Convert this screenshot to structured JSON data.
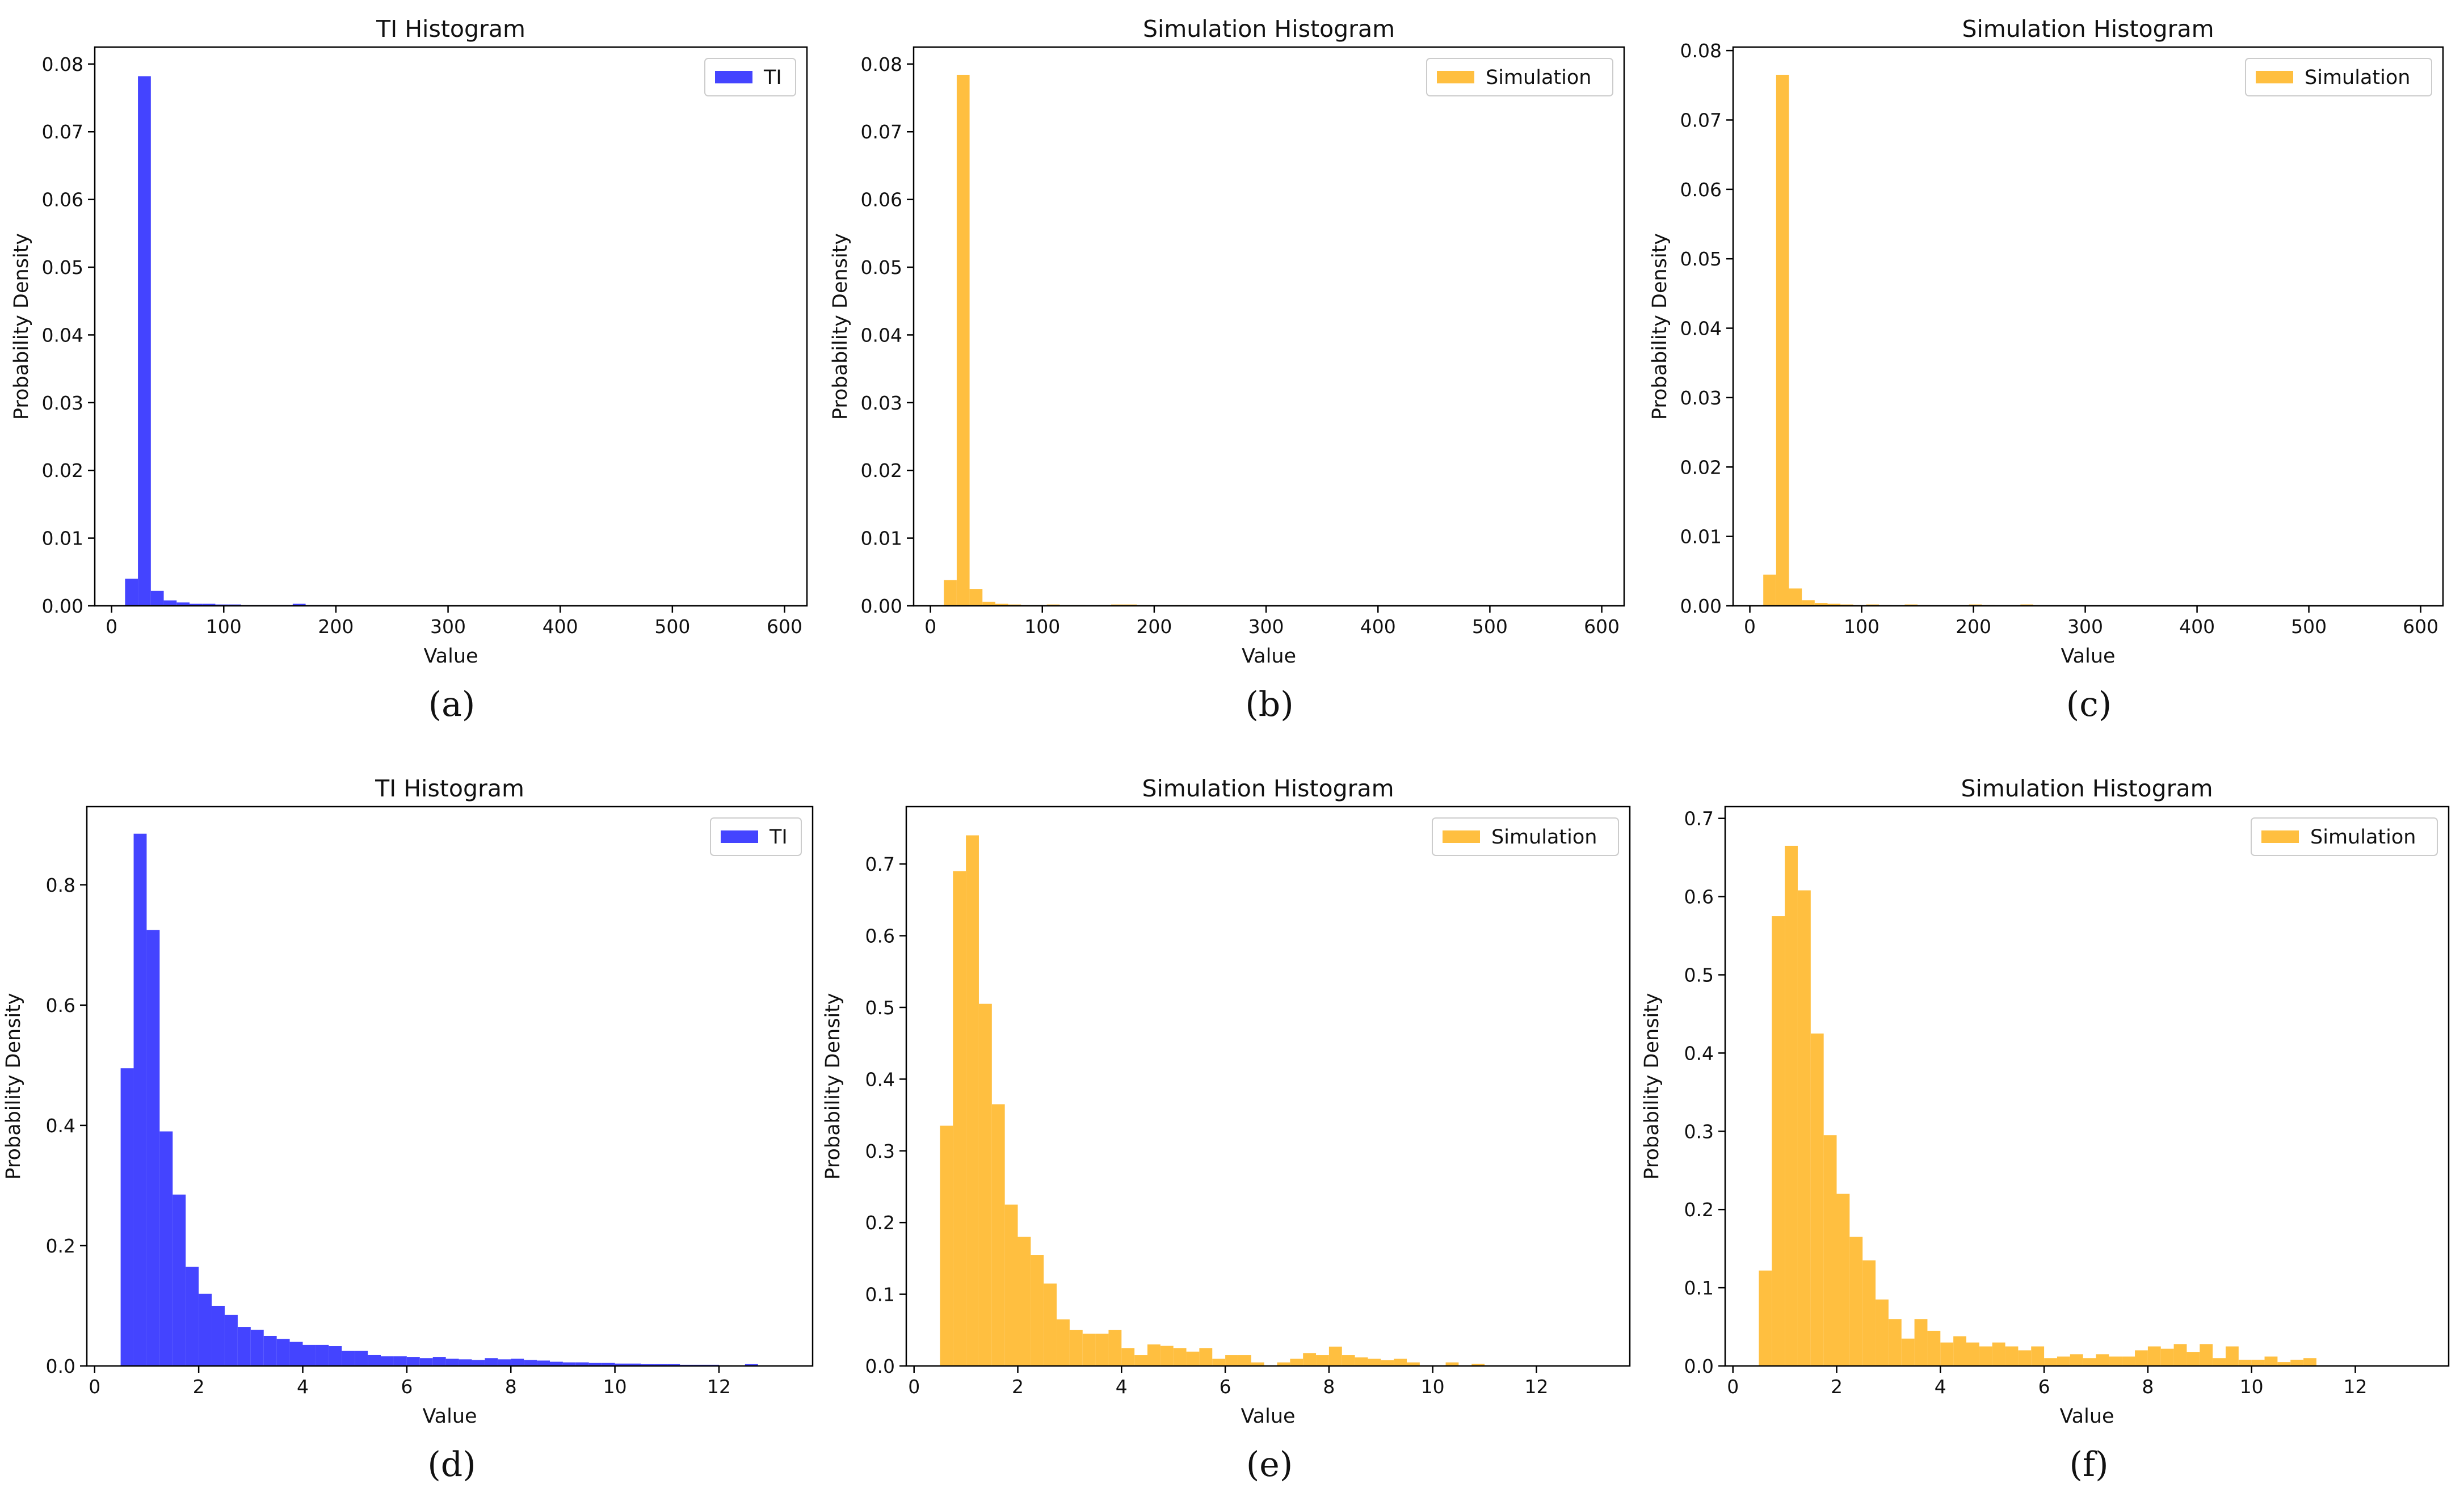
{
  "chart_data": [
    {
      "type": "bar",
      "panel": "(a)",
      "title": "TI Histogram",
      "xlabel": "Value",
      "ylabel": "Probability Density",
      "xlim": [
        -15,
        620
      ],
      "ylim": [
        0,
        0.0825
      ],
      "xticks": [
        0,
        100,
        200,
        300,
        400,
        500,
        600
      ],
      "yticks": [
        0.0,
        0.01,
        0.02,
        0.03,
        0.04,
        0.05,
        0.06,
        0.07,
        0.08
      ],
      "ytick_labels": [
        "0.00",
        "0.01",
        "0.02",
        "0.03",
        "0.04",
        "0.05",
        "0.06",
        "0.07",
        "0.08"
      ],
      "bin_start": 12,
      "bin_width": 11.5,
      "values": [
        0.004,
        0.0782,
        0.0022,
        0.0008,
        0.0005,
        0.0003,
        0.0003,
        0.0002,
        0.0002,
        0.0001,
        0.0001,
        0.0001,
        0.0001,
        0.0003,
        0.0001,
        0.0001
      ],
      "legend": [
        "TI"
      ],
      "legend_position": "upper right",
      "color": "#4444ff"
    },
    {
      "type": "bar",
      "panel": "(b)",
      "title": "Simulation Histogram",
      "xlabel": "Value",
      "ylabel": "Probability Density",
      "xlim": [
        -15,
        620
      ],
      "ylim": [
        0,
        0.0825
      ],
      "xticks": [
        0,
        100,
        200,
        300,
        400,
        500,
        600
      ],
      "yticks": [
        0.0,
        0.01,
        0.02,
        0.03,
        0.04,
        0.05,
        0.06,
        0.07,
        0.08
      ],
      "ytick_labels": [
        "0.00",
        "0.01",
        "0.02",
        "0.03",
        "0.04",
        "0.05",
        "0.06",
        "0.07",
        "0.08"
      ],
      "bin_start": 12,
      "bin_width": 11.5,
      "values": [
        0.0038,
        0.0784,
        0.0025,
        0.0006,
        0.0003,
        0.0002,
        0.0001,
        0.0001,
        0.0002,
        0.0001,
        0.0001,
        0.0,
        0.0001,
        0.0002,
        0.0002,
        0.0001,
        0.0,
        0.0,
        0.0001
      ],
      "legend": [
        "Simulation"
      ],
      "legend_position": "upper right",
      "color": "#ffbf40"
    },
    {
      "type": "bar",
      "panel": "(c)",
      "title": "Simulation Histogram",
      "xlabel": "Value",
      "ylabel": "Probability Density",
      "xlim": [
        -15,
        620
      ],
      "ylim": [
        0,
        0.0805
      ],
      "xticks": [
        0,
        100,
        200,
        300,
        400,
        500,
        600
      ],
      "yticks": [
        0.0,
        0.01,
        0.02,
        0.03,
        0.04,
        0.05,
        0.06,
        0.07,
        0.08
      ],
      "ytick_labels": [
        "0.00",
        "0.01",
        "0.02",
        "0.03",
        "0.04",
        "0.05",
        "0.06",
        "0.07",
        "0.08"
      ],
      "bin_start": 12,
      "bin_width": 11.5,
      "values": [
        0.0045,
        0.0765,
        0.0025,
        0.0008,
        0.0004,
        0.0003,
        0.0002,
        0.0001,
        0.0002,
        0.0001,
        0.0,
        0.0002,
        0.0001,
        0.0,
        0.0,
        0.0,
        0.0002,
        0.0001,
        0.0,
        0.0,
        0.0002
      ],
      "legend": [
        "Simulation"
      ],
      "legend_position": "upper right",
      "color": "#ffbf40"
    },
    {
      "type": "bar",
      "panel": "(d)",
      "title": "TI Histogram",
      "xlabel": "Value",
      "ylabel": "Probability Density",
      "xlim": [
        -0.15,
        13.8
      ],
      "ylim": [
        0,
        0.93
      ],
      "xticks": [
        0,
        2,
        4,
        6,
        8,
        10,
        12
      ],
      "yticks": [
        0.0,
        0.2,
        0.4,
        0.6,
        0.8
      ],
      "ytick_labels": [
        "0.0",
        "0.2",
        "0.4",
        "0.6",
        "0.8"
      ],
      "bin_start": 0.5,
      "bin_width": 0.25,
      "values": [
        0.495,
        0.885,
        0.725,
        0.39,
        0.285,
        0.165,
        0.12,
        0.1,
        0.085,
        0.065,
        0.06,
        0.05,
        0.045,
        0.04,
        0.035,
        0.035,
        0.033,
        0.025,
        0.025,
        0.018,
        0.016,
        0.016,
        0.015,
        0.013,
        0.015,
        0.012,
        0.011,
        0.01,
        0.013,
        0.011,
        0.012,
        0.01,
        0.009,
        0.007,
        0.006,
        0.006,
        0.005,
        0.005,
        0.004,
        0.004,
        0.003,
        0.003,
        0.003,
        0.002,
        0.002,
        0.002,
        0.001,
        0.0,
        0.003,
        0.0
      ],
      "legend": [
        "TI"
      ],
      "legend_position": "upper right",
      "color": "#4444ff"
    },
    {
      "type": "bar",
      "panel": "(e)",
      "title": "Simulation Histogram",
      "xlabel": "Value",
      "ylabel": "Probability Density",
      "xlim": [
        -0.15,
        13.8
      ],
      "ylim": [
        0,
        0.78
      ],
      "xticks": [
        0,
        2,
        4,
        6,
        8,
        10,
        12
      ],
      "yticks": [
        0.0,
        0.1,
        0.2,
        0.3,
        0.4,
        0.5,
        0.6,
        0.7
      ],
      "ytick_labels": [
        "0.0",
        "0.1",
        "0.2",
        "0.3",
        "0.4",
        "0.5",
        "0.6",
        "0.7"
      ],
      "bin_start": 0.5,
      "bin_width": 0.25,
      "values": [
        0.335,
        0.69,
        0.74,
        0.505,
        0.365,
        0.225,
        0.18,
        0.155,
        0.115,
        0.065,
        0.05,
        0.045,
        0.045,
        0.05,
        0.025,
        0.015,
        0.03,
        0.028,
        0.025,
        0.02,
        0.025,
        0.01,
        0.015,
        0.015,
        0.005,
        0.0,
        0.005,
        0.01,
        0.018,
        0.015,
        0.027,
        0.015,
        0.012,
        0.01,
        0.008,
        0.01,
        0.005,
        0.0,
        0.0,
        0.005,
        0.0,
        0.003,
        0.0
      ],
      "legend": [
        "Simulation"
      ],
      "legend_position": "upper right",
      "color": "#ffbf40"
    },
    {
      "type": "bar",
      "panel": "(f)",
      "title": "Simulation Histogram",
      "xlabel": "Value",
      "ylabel": "Probability Density",
      "xlim": [
        -0.15,
        13.8
      ],
      "ylim": [
        0,
        0.715
      ],
      "xticks": [
        0,
        2,
        4,
        6,
        8,
        10,
        12
      ],
      "yticks": [
        0.0,
        0.1,
        0.2,
        0.3,
        0.4,
        0.5,
        0.6,
        0.7
      ],
      "ytick_labels": [
        "0.0",
        "0.1",
        "0.2",
        "0.3",
        "0.4",
        "0.5",
        "0.6",
        "0.7"
      ],
      "bin_start": 0.5,
      "bin_width": 0.25,
      "values": [
        0.122,
        0.575,
        0.665,
        0.608,
        0.425,
        0.295,
        0.22,
        0.165,
        0.135,
        0.085,
        0.06,
        0.035,
        0.06,
        0.045,
        0.03,
        0.038,
        0.03,
        0.025,
        0.03,
        0.025,
        0.02,
        0.025,
        0.01,
        0.012,
        0.015,
        0.01,
        0.015,
        0.012,
        0.012,
        0.02,
        0.025,
        0.022,
        0.028,
        0.018,
        0.028,
        0.01,
        0.025,
        0.008,
        0.008,
        0.012,
        0.005,
        0.008,
        0.01
      ],
      "legend": [
        "Simulation"
      ],
      "legend_position": "upper right",
      "color": "#ffbf40"
    }
  ],
  "captions": [
    "(a)",
    "(b)",
    "(c)",
    "(d)",
    "(e)",
    "(f)"
  ]
}
